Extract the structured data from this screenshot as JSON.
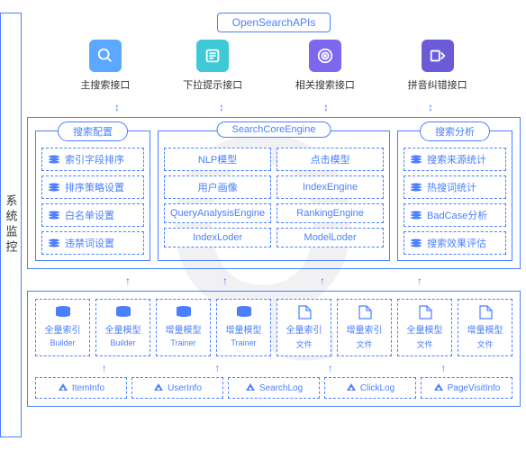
{
  "colors": {
    "primary": "#4a7fff",
    "text": "#333333",
    "icon_bg_light": "#5aa8ff",
    "icon_bg_teal": "#3fc9d6",
    "icon_bg_purple1": "#7b68ee",
    "icon_bg_purple2": "#6b5bd6",
    "watermark": "rgba(200,200,210,0.25)"
  },
  "sidebar": {
    "label": "系统监控"
  },
  "top_api": {
    "label": "OpenSearchAPIs"
  },
  "api_icons": [
    {
      "label": "主搜索接口",
      "bg": "#5aa8ff",
      "icon": "search"
    },
    {
      "label": "下拉提示接口",
      "bg": "#3fc9d6",
      "icon": "list"
    },
    {
      "label": "相关搜索接口",
      "bg": "#7b68ee",
      "icon": "radar"
    },
    {
      "label": "拼音纠错接口",
      "bg": "#6b5bd6",
      "icon": "spell"
    }
  ],
  "tier1": {
    "cols": [
      {
        "label": "搜索配置",
        "width": "0 0 128px",
        "items": [
          "索引字段排序",
          "排序策略设置",
          "白名单设置",
          "违禁词设置"
        ],
        "layout": "list",
        "icon": "stack"
      },
      {
        "label": "SearchCoreEngine",
        "width": "1 1 auto",
        "items": [
          "NLP模型",
          "点击模型",
          "用户画像",
          "IndexEngine",
          "QueryAnalysisEngine",
          "RankingEngine",
          "IndexLoder",
          "ModelLoder"
        ],
        "layout": "grid"
      },
      {
        "label": "搜索分析",
        "width": "0 0 128px",
        "items": [
          "搜索来源统计",
          "热搜词统计",
          "BadCase分析",
          "搜索效果评估"
        ],
        "layout": "list",
        "icon": "stack"
      }
    ]
  },
  "tier2": {
    "builders": [
      {
        "t1": "全量索引",
        "t2": "Builder",
        "icon": "db",
        "fill": true
      },
      {
        "t1": "全量模型",
        "t2": "Builder",
        "icon": "db",
        "fill": true
      },
      {
        "t1": "增量模型",
        "t2": "Trainer",
        "icon": "db",
        "fill": true
      },
      {
        "t1": "增量模型",
        "t2": "Trainer",
        "icon": "db",
        "fill": true
      },
      {
        "t1": "全量索引",
        "t2": "文件",
        "icon": "file",
        "fill": false
      },
      {
        "t1": "增量索引",
        "t2": "文件",
        "icon": "file",
        "fill": false
      },
      {
        "t1": "全量模型",
        "t2": "文件",
        "icon": "file",
        "fill": false
      },
      {
        "t1": "增量模型",
        "t2": "文件",
        "icon": "file",
        "fill": false
      }
    ],
    "sources": [
      "ItemInfo",
      "UserInfo",
      "SearchLog",
      "ClickLog",
      "PageVisitInfo"
    ]
  },
  "watermark_text": "Q"
}
